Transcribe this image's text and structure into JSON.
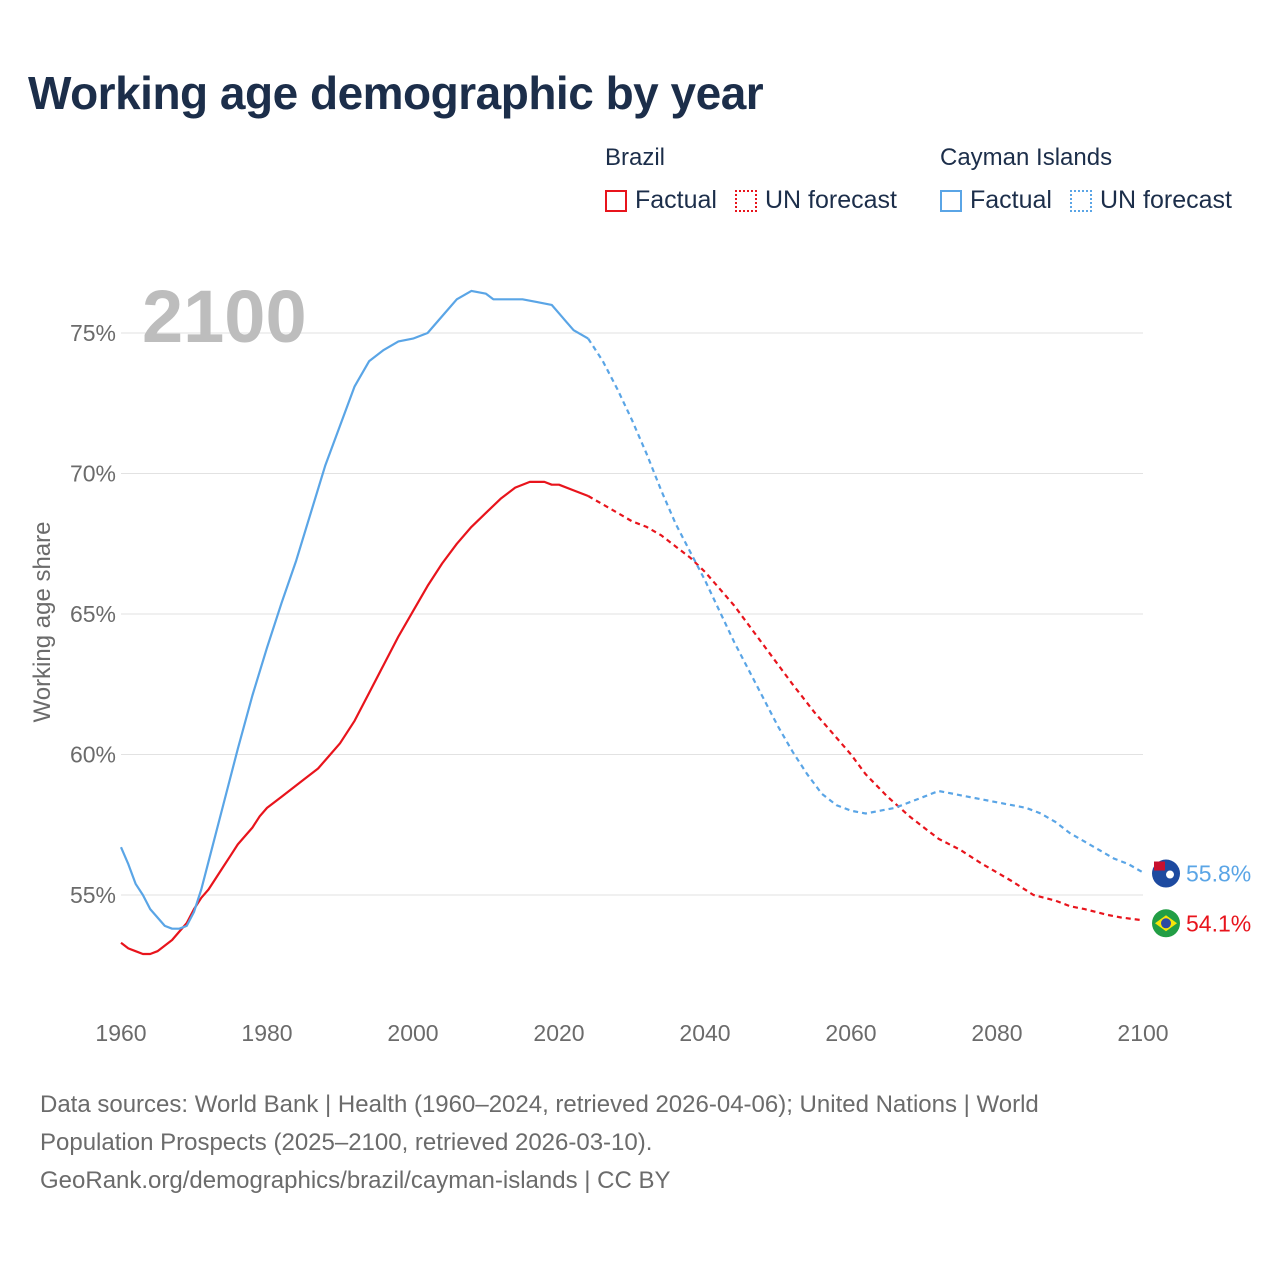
{
  "title": "Working age demographic by year",
  "legend": {
    "groups": [
      {
        "name": "Brazil",
        "color": "#e8141c",
        "factual_label": "Factual",
        "forecast_label": "UN forecast"
      },
      {
        "name": "Cayman Islands",
        "color": "#5aa5e6",
        "factual_label": "Factual",
        "forecast_label": "UN forecast"
      }
    ]
  },
  "footer": {
    "line1": "Data sources: World Bank | Health (1960–2024, retrieved 2026-04-06); United Nations | World",
    "line2": "Population Prospects (2025–2100, retrieved 2026-03-10).",
    "line3": "GeoRank.org/demographics/brazil/cayman-islands | CC BY"
  },
  "chart_data": {
    "type": "line",
    "title": "Working age demographic by year",
    "year_watermark": "2100",
    "xlabel": "",
    "ylabel": "Working age share",
    "xlim": [
      1960,
      2100
    ],
    "ylim": [
      51.5,
      77.5
    ],
    "x_ticks": [
      1960,
      1980,
      2000,
      2020,
      2040,
      2060,
      2080,
      2100
    ],
    "y_ticks": [
      55,
      60,
      65,
      70,
      75
    ],
    "y_tick_labels": [
      "55%",
      "60%",
      "65%",
      "70%",
      "75%"
    ],
    "grid": true,
    "forecast_start": 2024,
    "series": [
      {
        "name": "Brazil",
        "color": "#e8141c",
        "end_label": "54.1%",
        "x": [
          1960,
          1961,
          1962,
          1963,
          1964,
          1965,
          1966,
          1967,
          1968,
          1969,
          1970,
          1971,
          1972,
          1973,
          1974,
          1975,
          1976,
          1977,
          1978,
          1979,
          1980,
          1982,
          1985,
          1987,
          1988,
          1990,
          1992,
          1994,
          1996,
          1998,
          2000,
          2002,
          2004,
          2006,
          2008,
          2010,
          2012,
          2014,
          2016,
          2018,
          2019,
          2020,
          2022,
          2024,
          2026,
          2028,
          2030,
          2032,
          2034,
          2036,
          2038,
          2040,
          2042,
          2044,
          2046,
          2048,
          2050,
          2052,
          2055,
          2058,
          2060,
          2062,
          2065,
          2068,
          2070,
          2072,
          2075,
          2078,
          2080,
          2082,
          2085,
          2088,
          2090,
          2092,
          2095,
          2097,
          2100
        ],
        "values": [
          53.3,
          53.1,
          53.0,
          52.9,
          52.9,
          53.0,
          53.2,
          53.4,
          53.7,
          54.0,
          54.5,
          54.9,
          55.2,
          55.6,
          56.0,
          56.4,
          56.8,
          57.1,
          57.4,
          57.8,
          58.1,
          58.5,
          59.1,
          59.5,
          59.8,
          60.4,
          61.2,
          62.2,
          63.2,
          64.2,
          65.1,
          66.0,
          66.8,
          67.5,
          68.1,
          68.6,
          69.1,
          69.5,
          69.7,
          69.7,
          69.6,
          69.6,
          69.4,
          69.2,
          68.9,
          68.6,
          68.3,
          68.1,
          67.8,
          67.4,
          67.0,
          66.5,
          65.9,
          65.3,
          64.6,
          63.9,
          63.2,
          62.5,
          61.5,
          60.6,
          60.0,
          59.3,
          58.5,
          57.8,
          57.4,
          57.0,
          56.6,
          56.1,
          55.8,
          55.5,
          55.0,
          54.8,
          54.6,
          54.5,
          54.3,
          54.2,
          54.1
        ]
      },
      {
        "name": "Cayman Islands",
        "color": "#5aa5e6",
        "end_label": "55.8%",
        "x": [
          1960,
          1961,
          1962,
          1963,
          1964,
          1965,
          1966,
          1967,
          1968,
          1969,
          1970,
          1971,
          1972,
          1974,
          1976,
          1978,
          1980,
          1982,
          1984,
          1986,
          1988,
          1990,
          1992,
          1994,
          1996,
          1998,
          2000,
          2002,
          2004,
          2006,
          2008,
          2010,
          2011,
          2013,
          2015,
          2017,
          2019,
          2020,
          2021,
          2022,
          2024,
          2026,
          2028,
          2030,
          2032,
          2034,
          2036,
          2038,
          2040,
          2042,
          2044,
          2046,
          2048,
          2050,
          2052,
          2054,
          2056,
          2058,
          2060,
          2062,
          2064,
          2066,
          2068,
          2070,
          2072,
          2074,
          2076,
          2078,
          2080,
          2082,
          2084,
          2086,
          2088,
          2090,
          2092,
          2094,
          2096,
          2098,
          2100
        ],
        "values": [
          56.7,
          56.1,
          55.4,
          55.0,
          54.5,
          54.2,
          53.9,
          53.8,
          53.8,
          53.9,
          54.4,
          55.2,
          56.2,
          58.2,
          60.2,
          62.1,
          63.8,
          65.4,
          66.9,
          68.6,
          70.3,
          71.7,
          73.1,
          74.0,
          74.4,
          74.7,
          74.8,
          75.0,
          75.6,
          76.2,
          76.5,
          76.4,
          76.2,
          76.2,
          76.2,
          76.1,
          76.0,
          75.7,
          75.4,
          75.1,
          74.8,
          74.0,
          73.0,
          71.9,
          70.7,
          69.4,
          68.2,
          67.2,
          66.2,
          65.1,
          64.0,
          63.0,
          62.0,
          61.0,
          60.1,
          59.3,
          58.6,
          58.2,
          58.0,
          57.9,
          58.0,
          58.1,
          58.3,
          58.5,
          58.7,
          58.6,
          58.5,
          58.4,
          58.3,
          58.2,
          58.1,
          57.9,
          57.6,
          57.2,
          56.9,
          56.6,
          56.3,
          56.1,
          55.8
        ]
      }
    ]
  }
}
